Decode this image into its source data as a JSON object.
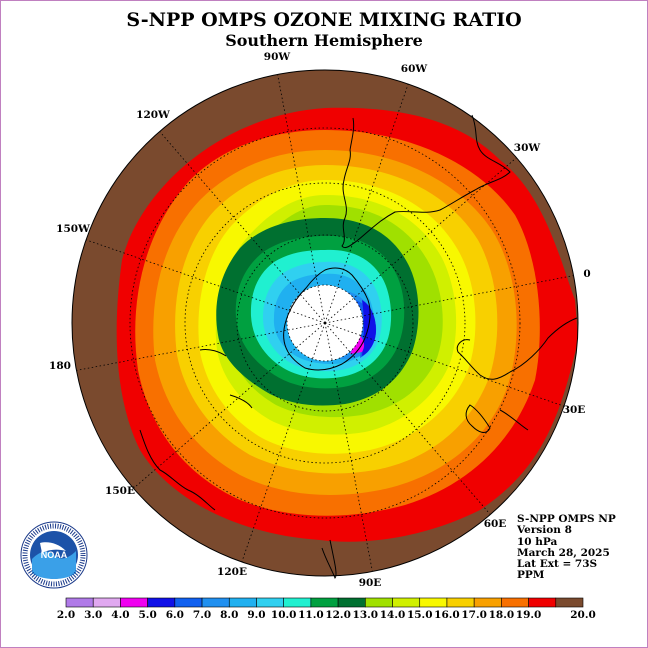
{
  "title": "S-NPP OMPS OZONE MIXING RATIO",
  "subtitle": "Southern Hemisphere",
  "longitude_labels": [
    "90W",
    "60W",
    "30W",
    "0",
    "30E",
    "60E",
    "90E",
    "120E",
    "150E",
    "180",
    "150W",
    "120W"
  ],
  "info": {
    "line1": "S-NPP OMPS NP",
    "line2": "Version 8",
    "line3": "10 hPa",
    "line4": "March 28, 2025",
    "line5": "Lat Ext = 73S",
    "line6": "PPM"
  },
  "logo": {
    "text": "NOAA",
    "ring_text": "NATIONAL OCEANIC AND ATMOSPHERIC ADMINISTRATION · U.S. DEPARTMENT OF COMMERCE"
  },
  "colorbar": {
    "labels": [
      "2.0",
      "3.0",
      "4.0",
      "5.0",
      "6.0",
      "7.0",
      "8.0",
      "9.0",
      "10.0",
      "11.0",
      "12.0",
      "13.0",
      "14.0",
      "15.0",
      "16.0",
      "17.0",
      "18.0",
      "19.0",
      "20.0"
    ],
    "colors": [
      "#b07ae8",
      "#e0a8f0",
      "#f000f0",
      "#1010e8",
      "#1060f0",
      "#2090f0",
      "#20b0f0",
      "#30d0f0",
      "#20f0d0",
      "#00a040",
      "#007030",
      "#a0e000",
      "#d0f000",
      "#f8f800",
      "#f8d000",
      "#f8a000",
      "#f87000",
      "#f00000",
      "#7a4a2e"
    ]
  },
  "map_colors": {
    "brown": "#7a4a2e",
    "red": "#f00000",
    "orange_red": "#f87000",
    "orange": "#f8a000",
    "yellow_orange": "#f8d000",
    "yellow": "#f8f800",
    "yellow_green": "#d0f000",
    "light_green": "#a0e000",
    "dark_green": "#007030",
    "green": "#00a040",
    "teal": "#20f0d0",
    "cyan": "#30d0f0",
    "sky": "#20b0f0",
    "blue_light": "#2090f0",
    "blue": "#1060f0",
    "navy": "#1010e8",
    "magenta": "#f000f0"
  }
}
